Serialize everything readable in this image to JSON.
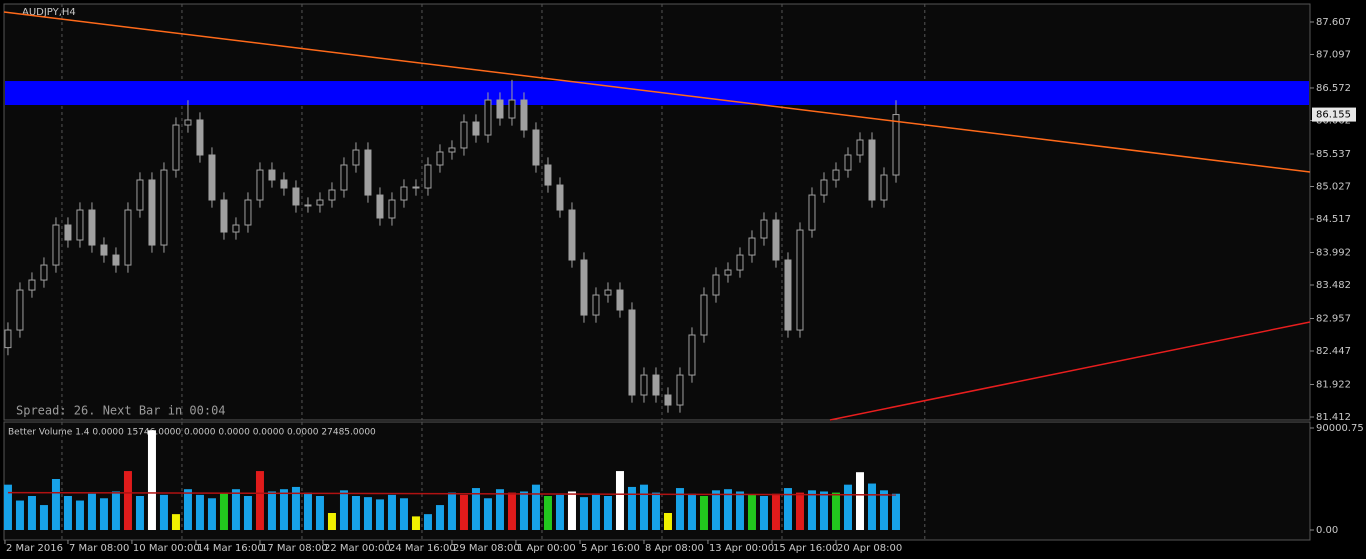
{
  "chart_data": [
    {
      "type": "candlestick",
      "title": "AUDJPY,H4",
      "annotation": "Spread: 26. Next Bar in 00:04",
      "candle_color": "#a0a0a0",
      "open": [
        82.5,
        82.776,
        83.403,
        83.56,
        83.795,
        84.423,
        84.188,
        84.658,
        84.109,
        83.952,
        83.795,
        84.658,
        85.129,
        84.109,
        85.285,
        85.991,
        86.07,
        85.521,
        84.815,
        84.313,
        84.423,
        84.815,
        85.285,
        85.129,
        85.003,
        84.737,
        84.737,
        84.815,
        84.972,
        85.364,
        85.599,
        84.893,
        84.533,
        84.815,
        85.019,
        85.003,
        85.364,
        85.568,
        85.631,
        86.038,
        85.834,
        86.383,
        86.101,
        86.383,
        85.913,
        85.364,
        85.05,
        84.658,
        83.874,
        83.011,
        83.325,
        83.403,
        83.09,
        81.757,
        82.07,
        81.757,
        81.6,
        82.07,
        82.698,
        83.325,
        83.639,
        83.717,
        83.952,
        84.219,
        84.501,
        83.874,
        82.776,
        84.344,
        84.893,
        85.129,
        85.285,
        85.521,
        85.756,
        84.815,
        85.207
      ],
      "high": [
        82.896,
        83.523,
        83.68,
        83.915,
        84.543,
        84.543,
        84.778,
        84.778,
        84.229,
        84.072,
        84.778,
        85.249,
        85.249,
        85.405,
        86.111,
        86.38,
        86.19,
        85.641,
        84.935,
        84.543,
        84.935,
        85.405,
        85.405,
        85.249,
        85.123,
        84.857,
        84.935,
        85.092,
        85.484,
        85.719,
        85.719,
        85.013,
        84.935,
        85.139,
        85.139,
        85.484,
        85.688,
        85.751,
        86.158,
        86.158,
        86.503,
        86.503,
        86.7,
        86.503,
        86.033,
        85.484,
        85.17,
        84.778,
        83.994,
        83.445,
        83.523,
        83.523,
        83.21,
        82.19,
        82.19,
        81.877,
        82.19,
        82.818,
        83.445,
        83.759,
        83.837,
        84.072,
        84.339,
        84.621,
        84.621,
        83.994,
        84.464,
        85.013,
        85.249,
        85.405,
        85.641,
        85.876,
        85.876,
        85.327,
        86.38
      ],
      "low": [
        82.38,
        82.656,
        83.283,
        83.44,
        83.675,
        84.068,
        84.068,
        83.989,
        83.832,
        83.675,
        83.675,
        84.538,
        83.989,
        83.989,
        85.165,
        85.871,
        85.401,
        84.695,
        84.193,
        84.193,
        84.303,
        84.695,
        85.009,
        84.883,
        84.617,
        84.617,
        84.617,
        84.695,
        84.852,
        85.244,
        84.773,
        84.413,
        84.413,
        84.695,
        84.883,
        84.883,
        85.244,
        85.448,
        85.511,
        85.714,
        85.714,
        85.981,
        85.981,
        85.793,
        85.244,
        84.93,
        84.538,
        83.754,
        82.891,
        82.891,
        83.205,
        82.97,
        81.637,
        81.637,
        81.637,
        81.48,
        81.48,
        81.95,
        82.578,
        83.205,
        83.519,
        83.597,
        83.832,
        84.099,
        83.754,
        82.656,
        82.656,
        84.224,
        84.773,
        85.009,
        85.165,
        85.401,
        84.695,
        84.695,
        85.087
      ],
      "close": [
        82.776,
        83.403,
        83.56,
        83.795,
        84.423,
        84.188,
        84.658,
        84.109,
        83.952,
        83.795,
        84.658,
        85.129,
        84.109,
        85.285,
        85.991,
        86.07,
        85.521,
        84.815,
        84.313,
        84.423,
        84.815,
        85.285,
        85.129,
        85.003,
        84.737,
        84.737,
        84.815,
        84.972,
        85.364,
        85.599,
        84.893,
        84.533,
        84.815,
        85.019,
        85.003,
        85.364,
        85.568,
        85.631,
        86.038,
        85.834,
        86.383,
        86.101,
        86.383,
        85.913,
        85.364,
        85.05,
        84.658,
        83.874,
        83.011,
        83.325,
        83.403,
        83.09,
        81.757,
        82.07,
        81.757,
        81.6,
        82.07,
        82.698,
        83.325,
        83.639,
        83.717,
        83.952,
        84.219,
        84.501,
        83.874,
        82.776,
        84.344,
        84.893,
        85.129,
        85.285,
        85.521,
        85.756,
        84.815,
        85.207,
        86.155
      ],
      "last_price": 86.155,
      "xlim": [
        -0.33,
        108.5
      ],
      "xticks": [
        {
          "value": -0.25,
          "label": "2 Mar 2016"
        },
        {
          "value": 5,
          "label": "7 Mar 08:00"
        },
        {
          "value": 10.33,
          "label": "10 Mar 00:00"
        },
        {
          "value": 15.67,
          "label": "14 Mar 16:00"
        },
        {
          "value": 21,
          "label": "17 Mar 08:00"
        },
        {
          "value": 26.25,
          "label": "22 Mar 00:00"
        },
        {
          "value": 31.67,
          "label": "24 Mar 16:00"
        },
        {
          "value": 37,
          "label": "29 Mar 08:00"
        },
        {
          "value": 42.33,
          "label": "1 Apr 00:00"
        },
        {
          "value": 47.67,
          "label": "5 Apr 16:00"
        },
        {
          "value": 53,
          "label": "8 Apr 08:00"
        },
        {
          "value": 58.33,
          "label": "13 Apr 00:00"
        },
        {
          "value": 63.67,
          "label": "15 Apr 16:00"
        },
        {
          "value": 69,
          "label": "20 Apr 08:00"
        }
      ],
      "xgrid": [
        4.5,
        14.5,
        24.5,
        34.5,
        44.5,
        54.5,
        64.5,
        76.4
      ],
      "ylim": [
        81.365,
        87.889
      ],
      "yticks": [
        87.607,
        87.097,
        86.572,
        86.062,
        85.537,
        85.027,
        84.517,
        83.992,
        83.482,
        82.957,
        82.447,
        81.922,
        81.412
      ],
      "zones": [
        {
          "color": "#0000ff",
          "low": 86.305,
          "high": 86.681
        }
      ],
      "trendlines": [
        {
          "color": "#ff6a1a",
          "x": [
            -0.33,
            108.5
          ],
          "values": [
            87.763,
            85.254
          ]
        },
        {
          "color": "#e81e1e",
          "x": [
            68.5,
            108.5
          ],
          "values": [
            81.365,
            82.902
          ]
        }
      ]
    },
    {
      "type": "bar",
      "title": "Better Volume 1.4 0.0000 15746.0000 0.0000 0.0000 0.0000 0.0000 27485.0000",
      "values": [
        40000,
        26000,
        30000,
        22000,
        45000,
        30000,
        26000,
        32000,
        28000,
        34000,
        52000,
        30000,
        88000,
        31000,
        14000,
        36000,
        31000,
        28000,
        33000,
        36000,
        30000,
        52000,
        34000,
        36000,
        38000,
        33000,
        30000,
        15000,
        35000,
        30000,
        29000,
        27000,
        31000,
        28000,
        12000,
        14000,
        22000,
        33000,
        31000,
        37000,
        28000,
        36000,
        33000,
        34000,
        40000,
        30000,
        31000,
        34000,
        29000,
        31000,
        30000,
        52000,
        38000,
        40000,
        33000,
        15000,
        37000,
        32000,
        30000,
        35000,
        36000,
        34000,
        31000,
        30000,
        32000,
        37000,
        33000,
        35000,
        34000,
        33000,
        40000,
        51000,
        41000,
        35000,
        32000
      ],
      "colors": [
        "#17a2e8",
        "#17a2e8",
        "#17a2e8",
        "#17a2e8",
        "#17a2e8",
        "#17a2e8",
        "#17a2e8",
        "#17a2e8",
        "#17a2e8",
        "#17a2e8",
        "#e01b1b",
        "#17a2e8",
        "#ffffff",
        "#17a2e8",
        "#f0f000",
        "#17a2e8",
        "#17a2e8",
        "#17a2e8",
        "#22c81e",
        "#17a2e8",
        "#17a2e8",
        "#e01b1b",
        "#17a2e8",
        "#17a2e8",
        "#17a2e8",
        "#17a2e8",
        "#17a2e8",
        "#f0f000",
        "#17a2e8",
        "#17a2e8",
        "#17a2e8",
        "#17a2e8",
        "#17a2e8",
        "#17a2e8",
        "#f0f000",
        "#17a2e8",
        "#17a2e8",
        "#17a2e8",
        "#e01b1b",
        "#17a2e8",
        "#17a2e8",
        "#17a2e8",
        "#e01b1b",
        "#17a2e8",
        "#17a2e8",
        "#22c81e",
        "#17a2e8",
        "#ffffff",
        "#17a2e8",
        "#17a2e8",
        "#17a2e8",
        "#ffffff",
        "#17a2e8",
        "#17a2e8",
        "#17a2e8",
        "#f0f000",
        "#17a2e8",
        "#17a2e8",
        "#22c81e",
        "#17a2e8",
        "#17a2e8",
        "#17a2e8",
        "#22c81e",
        "#17a2e8",
        "#e01b1b",
        "#17a2e8",
        "#e01b1b",
        "#17a2e8",
        "#17a2e8",
        "#22c81e",
        "#17a2e8",
        "#ffffff",
        "#17a2e8",
        "#17a2e8",
        "#17a2e8"
      ],
      "average": {
        "color": "#b01212",
        "x": [
          0,
          74
        ],
        "values": [
          33000,
          31000
        ]
      },
      "ylim": [
        0,
        90000.75
      ],
      "yticks": [
        90000.75,
        {
          "value": 0,
          "label": "0.00"
        }
      ]
    }
  ]
}
